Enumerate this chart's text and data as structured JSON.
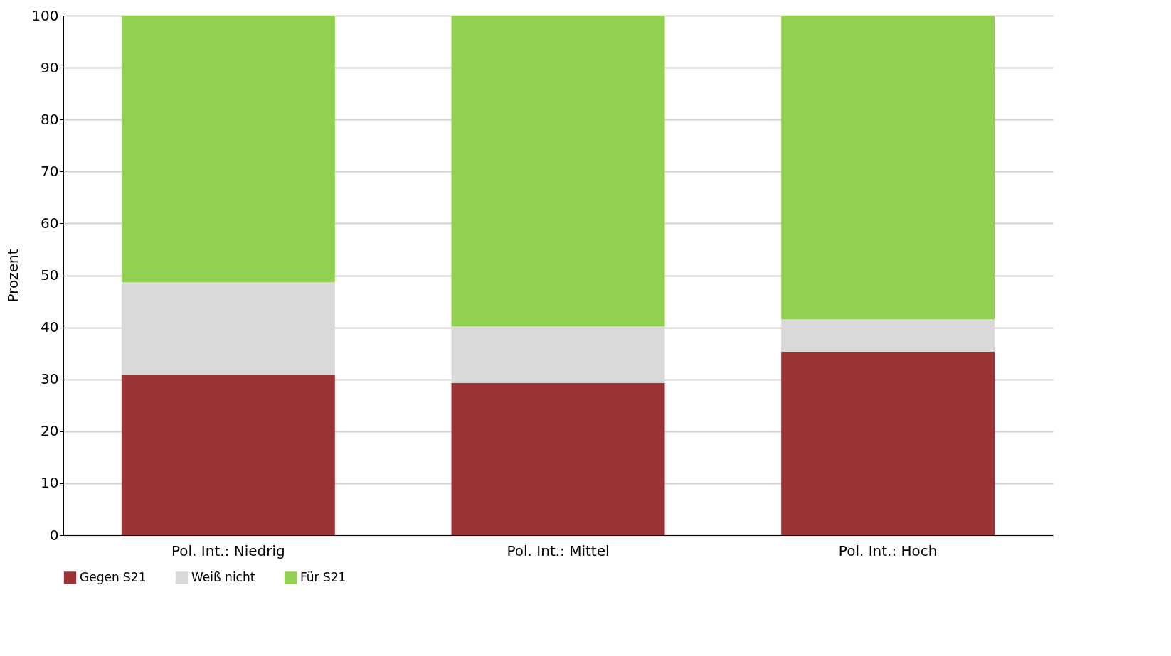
{
  "chart_data": {
    "type": "bar",
    "stacked": true,
    "ylabel": "Prozent",
    "categories": [
      "Pol. Int.: Niedrig",
      "Pol. Int.: Mittel",
      "Pol. Int.: Hoch"
    ],
    "series": [
      {
        "name": "Gegen S21",
        "color": "#9b3335",
        "values": [
          30.8,
          29.3,
          35.3
        ]
      },
      {
        "name": "Weiß nicht",
        "color": "#d9d9d9",
        "values": [
          17.9,
          10.9,
          6.3
        ]
      },
      {
        "name": "Für S21",
        "color": "#92d050",
        "values": [
          51.3,
          59.8,
          58.4
        ]
      }
    ],
    "ylim": [
      0,
      100
    ],
    "yticks": [
      0,
      10,
      20,
      30,
      40,
      50,
      60,
      70,
      80,
      90,
      100
    ],
    "grid": "y",
    "legend": "bottom"
  }
}
